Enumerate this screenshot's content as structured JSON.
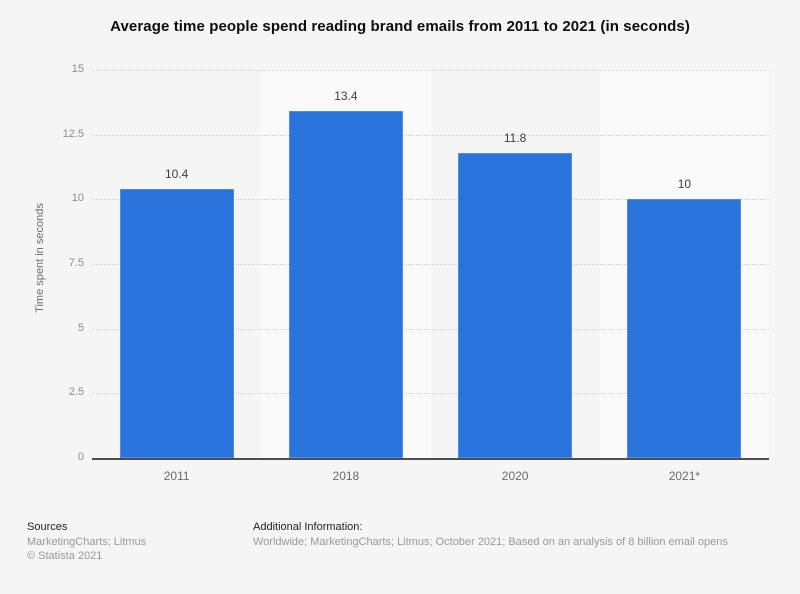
{
  "page": {
    "background": "#f5f5f5"
  },
  "title": "Average time people spend reading brand emails from 2011 to 2021 (in seconds)",
  "chart_data": {
    "type": "bar",
    "categories": [
      "2011",
      "2018",
      "2020",
      "2021*"
    ],
    "values": [
      10.4,
      13.4,
      11.8,
      10
    ],
    "title": "Average time people spend reading brand emails from 2011 to 2021 (in seconds)",
    "xlabel": "",
    "ylabel": "Time spent in seconds",
    "ylim": [
      0,
      15
    ],
    "yticks": [
      0,
      2.5,
      5,
      7.5,
      10,
      12.5,
      15
    ],
    "grid": "horizontal-dotted",
    "legend": "none",
    "bar_color": "#2a73dd",
    "column_band_color": "#fafafa",
    "plot_background": "#f5f5f5",
    "axis_line_color": "#4d4d4d",
    "gridline_color": "#d0d0d0"
  },
  "footer": {
    "sources_label": "Sources",
    "sources_text": "MarketingCharts; Litmus",
    "copyright": "© Statista 2021",
    "additional_label": "Additional Information:",
    "additional_text": "Worldwide; MarketingCharts; Litmus; October 2021; Based on an analysis of 8 billion email opens"
  }
}
